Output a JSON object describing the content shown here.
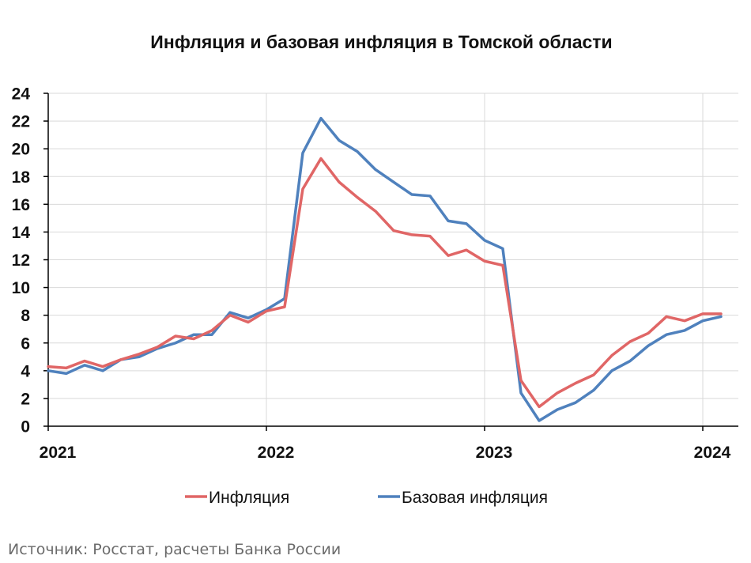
{
  "chart_data": {
    "type": "line",
    "title": "Инфляция и базовая инфляция в Томской области",
    "xlabel": "",
    "ylabel": "",
    "ylim": [
      0,
      24
    ],
    "yticks": [
      0,
      2,
      4,
      6,
      8,
      10,
      12,
      14,
      16,
      18,
      20,
      22,
      24
    ],
    "xlim": [
      "2021-01",
      "2024-02"
    ],
    "xticks": [
      "2021",
      "2022",
      "2023",
      "2024"
    ],
    "grid": true,
    "legend_position": "bottom",
    "x": [
      "2021-01",
      "2021-02",
      "2021-03",
      "2021-04",
      "2021-05",
      "2021-06",
      "2021-07",
      "2021-08",
      "2021-09",
      "2021-10",
      "2021-11",
      "2021-12",
      "2022-01",
      "2022-02",
      "2022-03",
      "2022-04",
      "2022-05",
      "2022-06",
      "2022-07",
      "2022-08",
      "2022-09",
      "2022-10",
      "2022-11",
      "2022-12",
      "2023-01",
      "2023-02",
      "2023-03",
      "2023-04",
      "2023-05",
      "2023-06",
      "2023-07",
      "2023-08",
      "2023-09",
      "2023-10",
      "2023-11",
      "2023-12",
      "2024-01",
      "2024-02"
    ],
    "series": [
      {
        "name": "Инфляция",
        "color": "#e06666",
        "values": [
          4.3,
          4.2,
          4.7,
          4.3,
          4.8,
          5.2,
          5.7,
          6.5,
          6.3,
          6.9,
          8.0,
          7.5,
          8.3,
          8.6,
          17.1,
          19.3,
          17.6,
          16.5,
          15.5,
          14.1,
          13.8,
          13.7,
          12.3,
          12.7,
          11.9,
          11.6,
          3.3,
          1.4,
          2.4,
          3.1,
          3.7,
          5.1,
          6.1,
          6.7,
          7.9,
          7.6,
          8.1,
          8.1
        ]
      },
      {
        "name": "Базовая инфляция",
        "color": "#4f81bd",
        "values": [
          4.0,
          3.8,
          4.4,
          4.0,
          4.8,
          5.0,
          5.6,
          6.0,
          6.6,
          6.6,
          8.2,
          7.8,
          8.4,
          9.2,
          19.7,
          22.2,
          20.6,
          19.8,
          18.5,
          17.6,
          16.7,
          16.6,
          14.8,
          14.6,
          13.4,
          12.8,
          2.4,
          0.4,
          1.2,
          1.7,
          2.6,
          4.0,
          4.7,
          5.8,
          6.6,
          6.9,
          7.6,
          7.9
        ]
      }
    ]
  },
  "source": "Источник: Росстат, расчеты Банка России"
}
